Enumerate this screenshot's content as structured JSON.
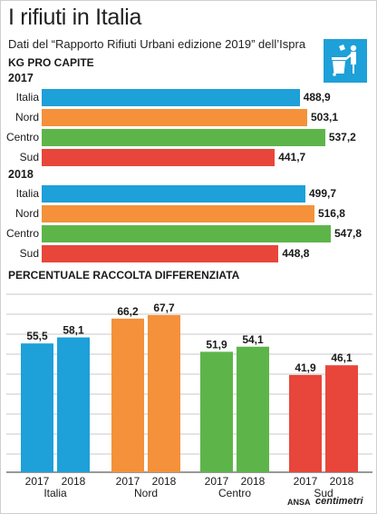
{
  "title": "I rifiuti in Italia",
  "subtitle": "Dati del “Rapporto Rifiuti Urbani edizione 2019” dell’Ispra",
  "unit_label": "KG PRO CAPITE",
  "icon": "waste-bin-person-icon",
  "colors": {
    "Italia": "#1ea0d8",
    "Nord": "#f4913a",
    "Centro": "#5db54a",
    "Sud": "#e8463a",
    "icon_bg": "#1ea0d8",
    "grid": "#c8c8c8"
  },
  "section2_title": "PERCENTUALE RACCOLTA DIFFERENZIATA",
  "footer": {
    "agency": "ANSA",
    "brand": "centimetri"
  },
  "chart_data": [
    {
      "type": "bar",
      "orientation": "horizontal",
      "title": "2017",
      "categories": [
        "Italia",
        "Nord",
        "Centro",
        "Sud"
      ],
      "values": [
        488.9,
        503.1,
        537.2,
        441.7
      ],
      "value_labels": [
        "488,9",
        "503,1",
        "537,2",
        "441,7"
      ]
    },
    {
      "type": "bar",
      "orientation": "horizontal",
      "title": "2018",
      "categories": [
        "Italia",
        "Nord",
        "Centro",
        "Sud"
      ],
      "values": [
        499.7,
        516.8,
        547.8,
        448.8
      ],
      "value_labels": [
        "499,7",
        "516,8",
        "547,8",
        "448,8"
      ]
    },
    {
      "type": "bar",
      "orientation": "vertical",
      "categories": [
        "Italia",
        "Nord",
        "Centro",
        "Sud"
      ],
      "series_labels": [
        "2017",
        "2018"
      ],
      "series": [
        {
          "name": "2017",
          "values": [
            55.5,
            66.2,
            51.9,
            41.9
          ],
          "value_labels": [
            "55,5",
            "66,2",
            "51,9",
            "41,9"
          ]
        },
        {
          "name": "2018",
          "values": [
            58.1,
            67.7,
            54.1,
            46.1
          ],
          "value_labels": [
            "58,1",
            "67,7",
            "54,1",
            "46,1"
          ]
        }
      ],
      "grid": true
    }
  ]
}
